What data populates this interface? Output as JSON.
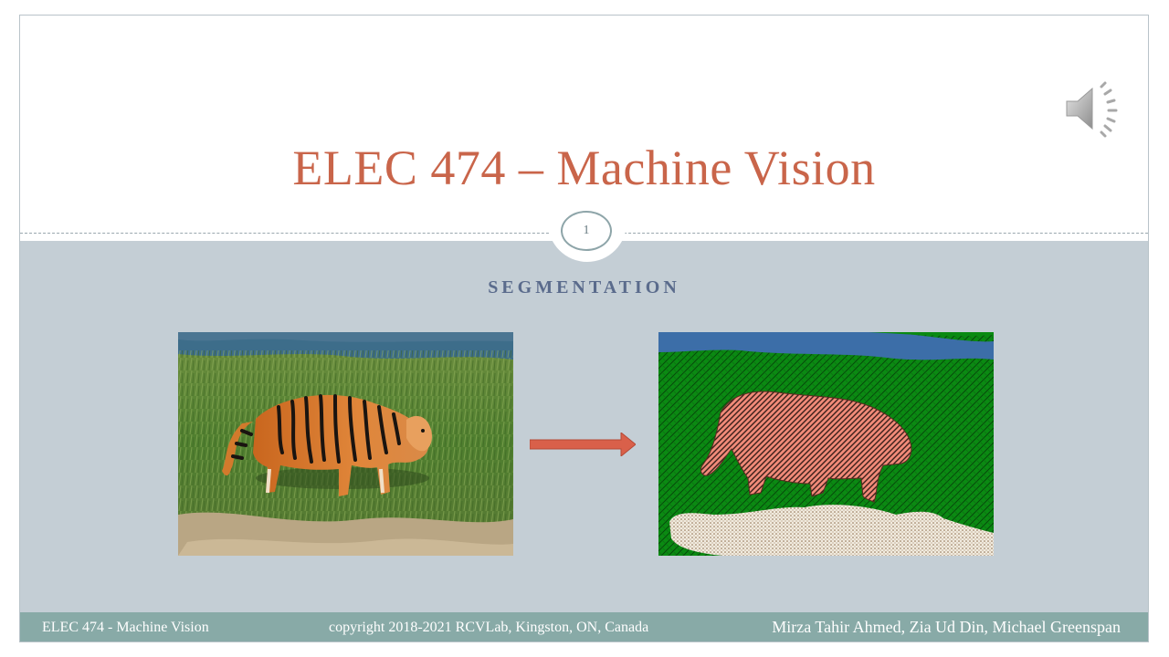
{
  "slide": {
    "title": "ELEC 474 – Machine Vision",
    "number": "1",
    "subtitle": "SEGMENTATION"
  },
  "footer": {
    "left": "ELEC 474 - Machine Vision",
    "center": "copyright 2018-2021 RCVLab, Kingston, ON, Canada",
    "right": "Mirza Tahir Ahmed, Zia Ud Din, Michael Greenspan"
  },
  "icons": {
    "audio": "speaker-icon",
    "arrow": "right-arrow-icon"
  },
  "colors": {
    "title": "#c9654a",
    "subtitle": "#5a6b8c",
    "content_bg": "#c4ced5",
    "footer_bg": "#88aaa7",
    "arrow": "#d9604a",
    "seg_water": "#3c6ea8",
    "seg_grass": "#0a8a12",
    "seg_tiger": "#f08a78",
    "seg_ground": "#efe6d7"
  }
}
